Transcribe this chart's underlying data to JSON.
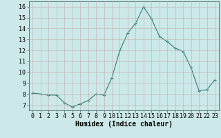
{
  "x": [
    0,
    1,
    2,
    3,
    4,
    5,
    6,
    7,
    8,
    9,
    10,
    11,
    12,
    13,
    14,
    15,
    16,
    17,
    18,
    19,
    20,
    21,
    22,
    23
  ],
  "y": [
    8.1,
    8.0,
    7.9,
    7.9,
    7.2,
    6.8,
    7.1,
    7.4,
    8.0,
    7.9,
    9.5,
    12.0,
    13.6,
    14.5,
    16.0,
    14.9,
    13.3,
    12.8,
    12.2,
    11.9,
    10.4,
    8.3,
    8.4,
    9.3
  ],
  "line_color": "#2e7d6e",
  "marker": "+",
  "marker_size": 3,
  "marker_linewidth": 0.8,
  "line_width": 0.8,
  "bg_color": "#cce8e8",
  "grid_color": "#c0b0b0",
  "xlabel": "Humidex (Indice chaleur)",
  "xlabel_fontsize": 7,
  "tick_fontsize": 6,
  "ylim": [
    6.5,
    16.5
  ],
  "xlim": [
    -0.5,
    23.5
  ],
  "yticks": [
    7,
    8,
    9,
    10,
    11,
    12,
    13,
    14,
    15,
    16
  ],
  "xticks": [
    0,
    1,
    2,
    3,
    4,
    5,
    6,
    7,
    8,
    9,
    10,
    11,
    12,
    13,
    14,
    15,
    16,
    17,
    18,
    19,
    20,
    21,
    22,
    23
  ]
}
